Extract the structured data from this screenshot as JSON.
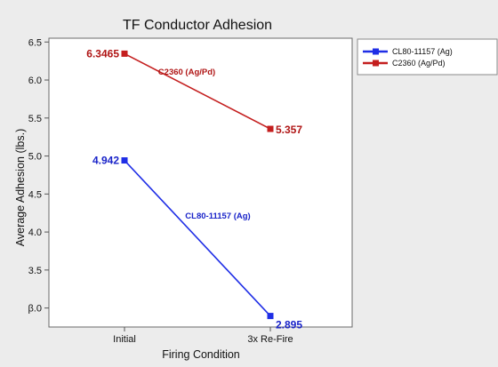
{
  "chart_data": {
    "type": "line",
    "title": "TF Conductor Adhesion",
    "xlabel": "Firing Condition",
    "ylabel": "Average Adhesion (lbs.)",
    "categories": [
      "Initial",
      "3x Re-Fire"
    ],
    "ylim": [
      2.75,
      6.55
    ],
    "yticks": [
      3.0,
      3.5,
      4.0,
      4.5,
      5.0,
      5.5,
      6.0,
      6.5
    ],
    "ytick_labels": [
      "β.0",
      "3.5",
      "4.0",
      "4.5",
      "5.0",
      "5.5",
      "6.0",
      "6.5"
    ],
    "grid": false,
    "legend_position": "top-right",
    "series": [
      {
        "name": "CL80-11157 (Ag)",
        "values": [
          4.942,
          2.895
        ],
        "data_labels": [
          "4.942",
          "2.895"
        ],
        "inline_label": "CL80-11157 (Ag)",
        "color": "#1f2ee6",
        "label_color": "#1a24c9"
      },
      {
        "name": "C2360 (Ag/Pd)",
        "values": [
          6.3465,
          5.357
        ],
        "data_labels": [
          "6.3465",
          "5.357"
        ],
        "inline_label": "C2360 (Ag/Pd)",
        "color": "#c41e1e",
        "label_color": "#b01616"
      }
    ]
  }
}
